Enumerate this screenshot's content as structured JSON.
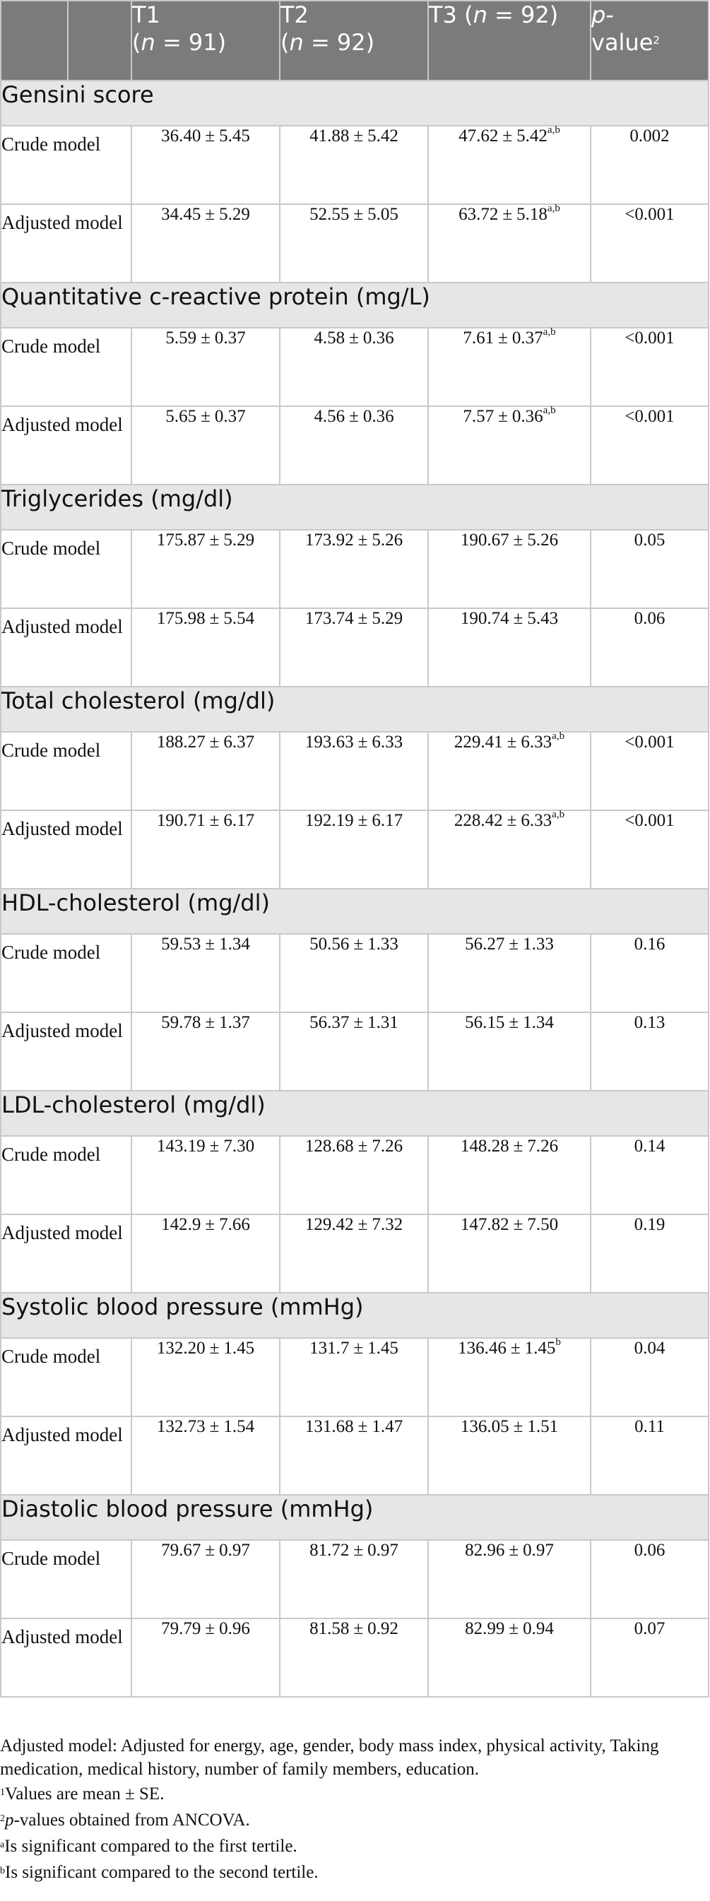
{
  "header": {
    "col1": "",
    "col2": "",
    "t1": {
      "name": "T1",
      "n_open": "(",
      "n_var": "n",
      "n_rest": " = 91)"
    },
    "t2": {
      "name": "T2",
      "n_open": "(",
      "n_var": "n",
      "n_rest": " = 92)"
    },
    "t3": {
      "name": "T3 (",
      "n_var": "n",
      "n_rest": " = 92)"
    },
    "p": {
      "p_var": "p",
      "p_rest": "-",
      "value": "value",
      "sup": "2"
    }
  },
  "pm": "±",
  "sections": [
    {
      "title": "Gensini score",
      "rows": [
        {
          "label": "Crude model",
          "t1": [
            "36.40",
            "5.45",
            ""
          ],
          "t2": [
            "41.88",
            "5.42",
            ""
          ],
          "t3": [
            "47.62",
            "5.42",
            "a,b"
          ],
          "p": "0.002"
        },
        {
          "label": "Adjusted model",
          "t1": [
            "34.45",
            "5.29",
            ""
          ],
          "t2": [
            "52.55",
            "5.05",
            ""
          ],
          "t3": [
            "63.72",
            "5.18",
            "a,b"
          ],
          "p": "<0.001"
        }
      ]
    },
    {
      "title": "Quantitative c-reactive protein (mg/L)",
      "rows": [
        {
          "label": "Crude model",
          "t1": [
            "5.59",
            "0.37",
            ""
          ],
          "t2": [
            "4.58",
            "0.36",
            ""
          ],
          "t3": [
            "7.61",
            "0.37",
            "a,b"
          ],
          "p": "<0.001"
        },
        {
          "label": "Adjusted model",
          "t1": [
            "5.65",
            "0.37",
            ""
          ],
          "t2": [
            "4.56",
            "0.36",
            ""
          ],
          "t3": [
            "7.57",
            "0.36",
            "a,b"
          ],
          "p": "<0.001"
        }
      ]
    },
    {
      "title": "Triglycerides (mg/dl)",
      "rows": [
        {
          "label": "Crude model",
          "t1": [
            "175.87",
            "5.29",
            ""
          ],
          "t2": [
            "173.92",
            "5.26",
            ""
          ],
          "t3": [
            "190.67",
            "5.26",
            ""
          ],
          "p": "0.05"
        },
        {
          "label": "Adjusted model",
          "t1": [
            "175.98",
            "5.54",
            ""
          ],
          "t2": [
            "173.74",
            "5.29",
            ""
          ],
          "t3": [
            "190.74",
            "5.43",
            ""
          ],
          "p": "0.06"
        }
      ]
    },
    {
      "title": "Total cholesterol (mg/dl)",
      "rows": [
        {
          "label": "Crude model",
          "t1": [
            "188.27",
            "6.37",
            ""
          ],
          "t2": [
            "193.63",
            "6.33",
            ""
          ],
          "t3": [
            "229.41",
            "6.33",
            "a,b"
          ],
          "p": "<0.001"
        },
        {
          "label": "Adjusted model",
          "t1": [
            "190.71",
            "6.17",
            ""
          ],
          "t2": [
            "192.19",
            "6.17",
            ""
          ],
          "t3": [
            "228.42",
            "6.33",
            "a,b"
          ],
          "p": "<0.001"
        }
      ]
    },
    {
      "title": "HDL-cholesterol (mg/dl)",
      "rows": [
        {
          "label": "Crude model",
          "t1": [
            "59.53",
            "1.34",
            ""
          ],
          "t2": [
            "50.56",
            "1.33",
            ""
          ],
          "t3": [
            "56.27",
            "1.33",
            ""
          ],
          "p": "0.16"
        },
        {
          "label": "Adjusted model",
          "t1": [
            "59.78",
            "1.37",
            ""
          ],
          "t2": [
            "56.37",
            "1.31",
            ""
          ],
          "t3": [
            "56.15",
            "1.34",
            ""
          ],
          "p": "0.13"
        }
      ]
    },
    {
      "title": "LDL-cholesterol (mg/dl)",
      "rows": [
        {
          "label": "Crude model",
          "t1": [
            "143.19",
            "7.30",
            ""
          ],
          "t2": [
            "128.68",
            "7.26",
            ""
          ],
          "t3": [
            "148.28",
            "7.26",
            ""
          ],
          "p": "0.14"
        },
        {
          "label": "Adjusted model",
          "t1": [
            "142.9",
            "7.66",
            ""
          ],
          "t2": [
            "129.42",
            "7.32",
            ""
          ],
          "t3": [
            "147.82",
            "7.50",
            ""
          ],
          "p": "0.19"
        }
      ]
    },
    {
      "title": "Systolic blood pressure (mmHg)",
      "rows": [
        {
          "label": "Crude model",
          "t1": [
            "132.20",
            "1.45",
            ""
          ],
          "t2": [
            "131.7",
            "1.45",
            ""
          ],
          "t3": [
            "136.46",
            "1.45",
            "b"
          ],
          "p": "0.04"
        },
        {
          "label": "Adjusted model",
          "t1": [
            "132.73",
            "1.54",
            ""
          ],
          "t2": [
            "131.68",
            "1.47",
            ""
          ],
          "t3": [
            "136.05",
            "1.51",
            ""
          ],
          "p": "0.11"
        }
      ]
    },
    {
      "title": "Diastolic blood pressure (mmHg)",
      "rows": [
        {
          "label": "Crude model",
          "t1": [
            "79.67",
            "0.97",
            ""
          ],
          "t2": [
            "81.72",
            "0.97",
            ""
          ],
          "t3": [
            "82.96",
            "0.97",
            ""
          ],
          "p": "0.06"
        },
        {
          "label": "Adjusted model",
          "t1": [
            "79.79",
            "0.96",
            ""
          ],
          "t2": [
            "81.58",
            "0.92",
            ""
          ],
          "t3": [
            "82.99",
            "0.94",
            ""
          ],
          "p": "0.07"
        }
      ]
    }
  ],
  "footnotes": {
    "adjusted": "Adjusted model: Adjusted for energy, age, gender, body mass index, physical activity, Taking medication, medical history, number of family members, education.",
    "f1": {
      "mark": "1",
      "text": "Values are mean ± SE."
    },
    "f2": {
      "mark": "2",
      "var": "p",
      "text": "-values obtained from ANCOVA."
    },
    "fa": {
      "mark": "a",
      "text": "Is significant compared to the first tertile."
    },
    "fb": {
      "mark": "b",
      "text": "Is significant compared to the second tertile."
    }
  }
}
